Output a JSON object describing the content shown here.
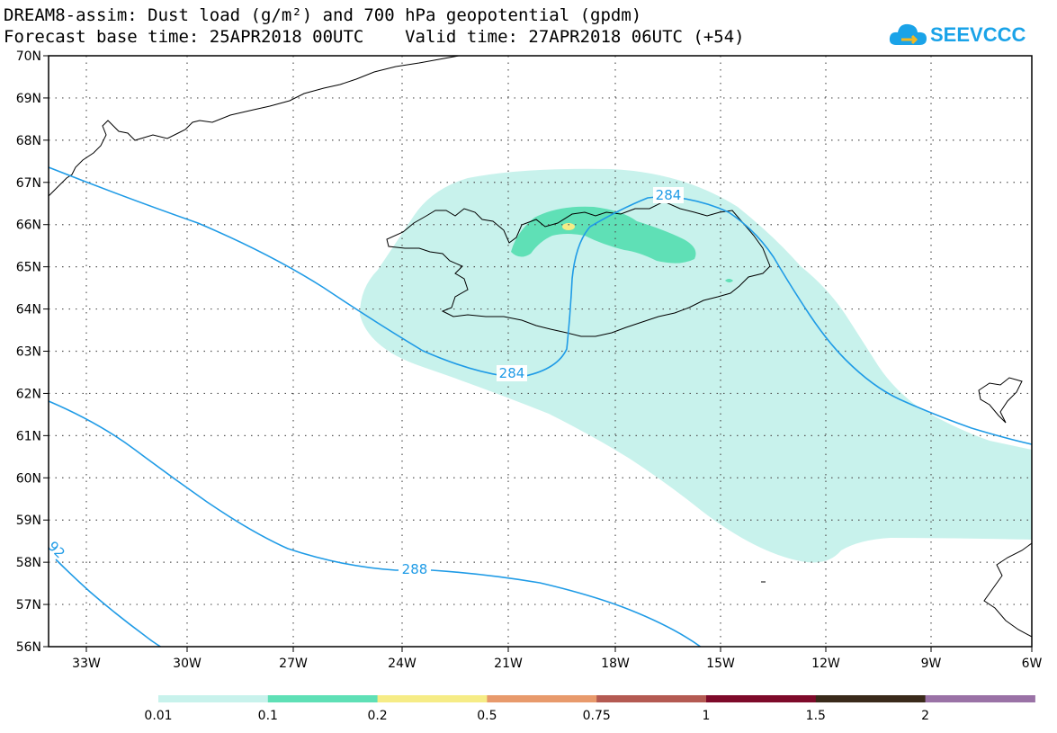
{
  "title_line1": "DREAM8-assim: Dust load (g/m²) and 700 hPa geopotential (gpdm)",
  "title_line2": "Forecast base time: 25APR2018 00UTC    Valid time: 27APR2018 06UTC (+54)",
  "logo_text": "SEEVCCC",
  "lat_labels": [
    "70N",
    "69N",
    "68N",
    "67N",
    "66N",
    "65N",
    "64N",
    "63N",
    "62N",
    "61N",
    "60N",
    "59N",
    "58N",
    "57N",
    "56N"
  ],
  "lon_labels": [
    "33W",
    "30W",
    "27W",
    "24W",
    "21W",
    "18W",
    "15W",
    "12W",
    "9W",
    "6W"
  ],
  "contour_labels": [
    "284",
    "284",
    "288",
    "92"
  ],
  "legend": {
    "colors": [
      "#c8f2ec",
      "#5fe0b6",
      "#f6ec86",
      "#e89a6c",
      "#b45a52",
      "#7e0a2a",
      "#3a2a1a",
      "#9a72a6"
    ],
    "labels": [
      "0.01",
      "0.1",
      "0.2",
      "0.5",
      "0.75",
      "1",
      "1.5",
      "2"
    ]
  },
  "colors": {
    "contour": "#1f9be6",
    "coast": "#000000",
    "dust_low": "#c8f2ec",
    "dust_mid": "#5fe0b6",
    "dust_high": "#f6ec86"
  }
}
